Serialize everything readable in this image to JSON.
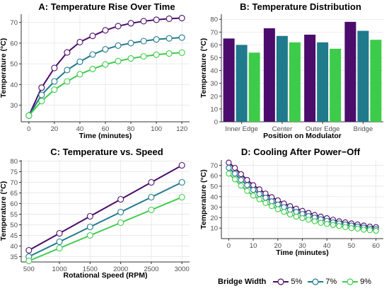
{
  "colors": {
    "s5": "#4b0c6b",
    "s7": "#1f7a8c",
    "s9": "#3dcc4a",
    "grid": "#e3e3e3",
    "axis": "#333333"
  },
  "legend": {
    "title": "Bridge Width",
    "labels": [
      "5%",
      "7%",
      "9%"
    ]
  },
  "chart_data": [
    {
      "id": "A",
      "type": "line",
      "title": "A: Temperature Rise Over Time",
      "xlabel": "Time (minutes)",
      "ylabel": "Temperature (°C)",
      "xlim": [
        -6,
        126
      ],
      "ylim": [
        22,
        74
      ],
      "xticks": [
        0,
        20,
        40,
        60,
        80,
        100,
        120
      ],
      "yticks": [
        30,
        40,
        50,
        60,
        70
      ],
      "x": [
        0,
        10,
        20,
        30,
        40,
        50,
        60,
        70,
        80,
        90,
        100,
        110,
        120
      ],
      "series": [
        {
          "name": "5%",
          "values": [
            25,
            38.5,
            48,
            55.5,
            60.5,
            63.5,
            66.2,
            68.2,
            69.6,
            70.6,
            71.3,
            71.8,
            72.1
          ]
        },
        {
          "name": "7%",
          "values": [
            25,
            35,
            41.5,
            47,
            51,
            54.5,
            57,
            58.8,
            60,
            61,
            61.8,
            62.3,
            62.7
          ]
        },
        {
          "name": "9%",
          "values": [
            25,
            32,
            37.5,
            41.5,
            45,
            47.5,
            49.7,
            51.3,
            52.6,
            53.6,
            54.4,
            55,
            55.4
          ]
        }
      ],
      "grid": true
    },
    {
      "id": "B",
      "type": "bar",
      "title": "B: Temperature Distribution",
      "xlabel": "Position on Modulator",
      "ylabel": "Temperature (°C)",
      "ylim": [
        0,
        84
      ],
      "yticks": [
        0,
        10,
        20,
        30,
        40,
        50,
        60,
        70,
        80
      ],
      "categories": [
        "Inner Edge",
        "Center",
        "Outer Edge",
        "Bridge"
      ],
      "series": [
        {
          "name": "5%",
          "values": [
            65,
            73,
            68,
            78
          ]
        },
        {
          "name": "7%",
          "values": [
            60,
            67,
            62,
            71
          ]
        },
        {
          "name": "9%",
          "values": [
            54,
            62,
            57,
            64
          ]
        }
      ],
      "grid": true
    },
    {
      "id": "C",
      "type": "line",
      "title": "C: Temperature vs. Speed",
      "xlabel": "Rotational Speed (RPM)",
      "ylabel": "Temperature (°C)",
      "xlim": [
        375,
        3125
      ],
      "ylim": [
        32.5,
        80.5
      ],
      "xticks": [
        500,
        1000,
        1500,
        2000,
        2500,
        3000
      ],
      "yticks": [
        35,
        40,
        45,
        50,
        55,
        60,
        65,
        70,
        75,
        80
      ],
      "x": [
        500,
        1000,
        1500,
        2000,
        2500,
        3000
      ],
      "series": [
        {
          "name": "5%",
          "values": [
            38,
            46,
            54,
            62,
            70,
            78
          ]
        },
        {
          "name": "7%",
          "values": [
            35,
            42,
            49,
            56,
            63,
            70
          ]
        },
        {
          "name": "9%",
          "values": [
            33,
            39,
            45,
            51,
            57,
            63
          ]
        }
      ],
      "grid": true
    },
    {
      "id": "D",
      "type": "line",
      "title": "D: Cooling After Power−Off",
      "xlabel": "Time (minutes)",
      "ylabel": "Temperature (°C)",
      "xlim": [
        -3,
        63
      ],
      "ylim": [
        0,
        75
      ],
      "xticks": [
        0,
        10,
        20,
        30,
        40,
        50,
        60
      ],
      "yticks": [
        10,
        20,
        30,
        40,
        50,
        60,
        70
      ],
      "x": [
        0,
        2.5,
        5,
        7.5,
        10,
        12.5,
        15,
        17.5,
        20,
        22.5,
        25,
        27.5,
        30,
        32.5,
        35,
        37.5,
        40,
        42.5,
        45,
        47.5,
        50,
        52.5,
        55,
        57.5,
        60
      ],
      "series": [
        {
          "name": "5%",
          "values": [
            72.5,
            67.5,
            61.5,
            56,
            51,
            47,
            43,
            39.5,
            36.5,
            33.5,
            31,
            28.5,
            26.5,
            24.5,
            22.5,
            21,
            19.5,
            18,
            16.5,
            15.5,
            14.5,
            13.5,
            12.5,
            11.5,
            11
          ]
        },
        {
          "name": "7%",
          "values": [
            67.5,
            62,
            56,
            51,
            46.5,
            42.5,
            39,
            35.5,
            32.5,
            30,
            27.5,
            25.5,
            23.5,
            21.5,
            20,
            18.5,
            17,
            15.5,
            14.5,
            13.5,
            12.5,
            11.5,
            10.5,
            9.5,
            9
          ]
        },
        {
          "name": "9%",
          "values": [
            62,
            56.5,
            50.5,
            45.5,
            41,
            37.5,
            34,
            31,
            28,
            25.5,
            23,
            21,
            19.5,
            18,
            16.5,
            15,
            14,
            13,
            12,
            11,
            10,
            9.5,
            8.5,
            8,
            7.5
          ]
        }
      ],
      "grid": true
    }
  ]
}
